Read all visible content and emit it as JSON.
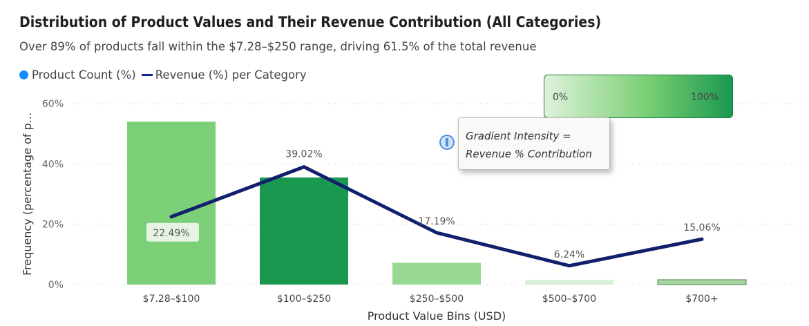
{
  "header": {
    "title": "Distribution of Product Values and Their Revenue Contribution (All Categories)",
    "subtitle": "Over 89% of products fall within the $7.28–$250 range, driving 61.5% of the total revenue"
  },
  "legend": {
    "items": [
      {
        "label": "Product Count (%)",
        "color": "#118DFF",
        "marker": "dot"
      },
      {
        "label": "Revenue (%) per Category",
        "color": "#12239E",
        "marker": "line"
      }
    ]
  },
  "gradient_legend": {
    "min_label": "0%",
    "max_label": "100%",
    "color_min": "#dff2dc",
    "color_max": "#1a9850"
  },
  "tooltip": {
    "line1": "Gradient Intensity =",
    "line2": "Revenue % Contribution"
  },
  "chart_data": {
    "type": "bar",
    "xlabel": "Product Value Bins (USD)",
    "ylabel": "Frequency (percentage of p...",
    "ylim": [
      0,
      60
    ],
    "yticks": [
      "0%",
      "20%",
      "40%",
      "60%"
    ],
    "grid": true,
    "categories": [
      "$7.28–$100",
      "$100–$250",
      "$250–$500",
      "$500–$700",
      "$700+"
    ],
    "series": [
      {
        "name": "Product Count (%)",
        "type": "bar",
        "values": [
          54,
          35.5,
          7.2,
          1.5,
          1.6
        ],
        "colors": [
          "#7bcf77",
          "#1a9850",
          "#97d992",
          "#d8f0d5",
          "#a5d69f"
        ]
      },
      {
        "name": "Revenue (%) per Category",
        "type": "line",
        "color": "#12206b",
        "values": [
          22.49,
          39.02,
          17.19,
          6.24,
          15.06
        ],
        "labels": [
          "22.49%",
          "39.02%",
          "17.19%",
          "6.24%",
          "15.06%"
        ]
      }
    ]
  }
}
